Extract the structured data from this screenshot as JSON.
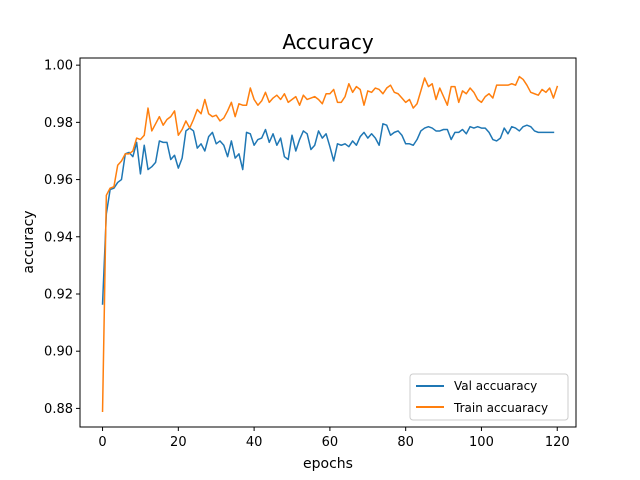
{
  "chart_data": {
    "type": "line",
    "title": "Accuracy",
    "xlabel": "epochs",
    "ylabel": "accuracy",
    "xlim": [
      -5.95,
      124.95
    ],
    "ylim": [
      0.8735,
      1.0025
    ],
    "xticks": [
      "0",
      "20",
      "40",
      "60",
      "80",
      "100",
      "120"
    ],
    "xtick_values": [
      0,
      20,
      40,
      60,
      80,
      100,
      120
    ],
    "yticks": [
      "0.88",
      "0.90",
      "0.92",
      "0.94",
      "0.96",
      "0.98",
      "1.00"
    ],
    "ytick_values": [
      0.88,
      0.9,
      0.92,
      0.94,
      0.96,
      0.98,
      1.0
    ],
    "grid": false,
    "legend_position": "lower-right",
    "series": [
      {
        "name": "Val accuaracy",
        "color": "#1f77b4",
        "values": [
          0.9165,
          0.948,
          0.9565,
          0.957,
          0.959,
          0.96,
          0.969,
          0.9695,
          0.968,
          0.973,
          0.962,
          0.972,
          0.9635,
          0.9645,
          0.966,
          0.9735,
          0.973,
          0.973,
          0.967,
          0.9685,
          0.964,
          0.9675,
          0.977,
          0.978,
          0.977,
          0.971,
          0.9725,
          0.97,
          0.975,
          0.9765,
          0.9725,
          0.9735,
          0.972,
          0.968,
          0.9735,
          0.9675,
          0.969,
          0.9635,
          0.9765,
          0.976,
          0.972,
          0.974,
          0.9745,
          0.9775,
          0.973,
          0.976,
          0.972,
          0.9745,
          0.968,
          0.967,
          0.9755,
          0.97,
          0.974,
          0.977,
          0.976,
          0.9705,
          0.972,
          0.977,
          0.9745,
          0.976,
          0.9715,
          0.9665,
          0.9725,
          0.972,
          0.9725,
          0.9715,
          0.9735,
          0.972,
          0.975,
          0.9765,
          0.9745,
          0.976,
          0.9745,
          0.972,
          0.9795,
          0.979,
          0.9755,
          0.9765,
          0.977,
          0.9755,
          0.9725,
          0.9725,
          0.972,
          0.974,
          0.977,
          0.978,
          0.9785,
          0.978,
          0.977,
          0.977,
          0.9775,
          0.9775,
          0.974,
          0.9765,
          0.9765,
          0.9775,
          0.976,
          0.9785,
          0.978,
          0.9785,
          0.978,
          0.978,
          0.9765,
          0.974,
          0.9735,
          0.9745,
          0.978,
          0.976,
          0.9785,
          0.978,
          0.977,
          0.9785,
          0.979,
          0.9785,
          0.977,
          0.9765,
          0.9765,
          0.9765,
          0.9765,
          0.9765
        ]
      },
      {
        "name": "Train accuaracy",
        "color": "#ff7f0e",
        "values": [
          0.879,
          0.9545,
          0.957,
          0.9575,
          0.965,
          0.9665,
          0.969,
          0.969,
          0.97,
          0.9745,
          0.974,
          0.9755,
          0.985,
          0.977,
          0.9795,
          0.982,
          0.979,
          0.981,
          0.982,
          0.984,
          0.9755,
          0.9775,
          0.9805,
          0.978,
          0.981,
          0.9845,
          0.983,
          0.988,
          0.983,
          0.982,
          0.9825,
          0.9805,
          0.9815,
          0.984,
          0.987,
          0.982,
          0.9865,
          0.986,
          0.986,
          0.992,
          0.988,
          0.986,
          0.9875,
          0.9905,
          0.987,
          0.9885,
          0.9895,
          0.988,
          0.99,
          0.987,
          0.988,
          0.989,
          0.986,
          0.9895,
          0.988,
          0.9885,
          0.989,
          0.988,
          0.9865,
          0.99,
          0.99,
          0.9915,
          0.987,
          0.987,
          0.989,
          0.9935,
          0.9905,
          0.9925,
          0.9915,
          0.986,
          0.991,
          0.9905,
          0.992,
          0.9915,
          0.99,
          0.992,
          0.993,
          0.9905,
          0.99,
          0.9885,
          0.987,
          0.988,
          0.985,
          0.9865,
          0.991,
          0.9955,
          0.9925,
          0.9935,
          0.988,
          0.992,
          0.989,
          0.986,
          0.9925,
          0.9925,
          0.987,
          0.991,
          0.99,
          0.992,
          0.9905,
          0.988,
          0.987,
          0.989,
          0.99,
          0.9885,
          0.993,
          0.993,
          0.993,
          0.993,
          0.9935,
          0.993,
          0.996,
          0.995,
          0.993,
          0.9905,
          0.99,
          0.9895,
          0.9915,
          0.9905,
          0.992,
          0.9885,
          0.9925
        ]
      }
    ]
  }
}
